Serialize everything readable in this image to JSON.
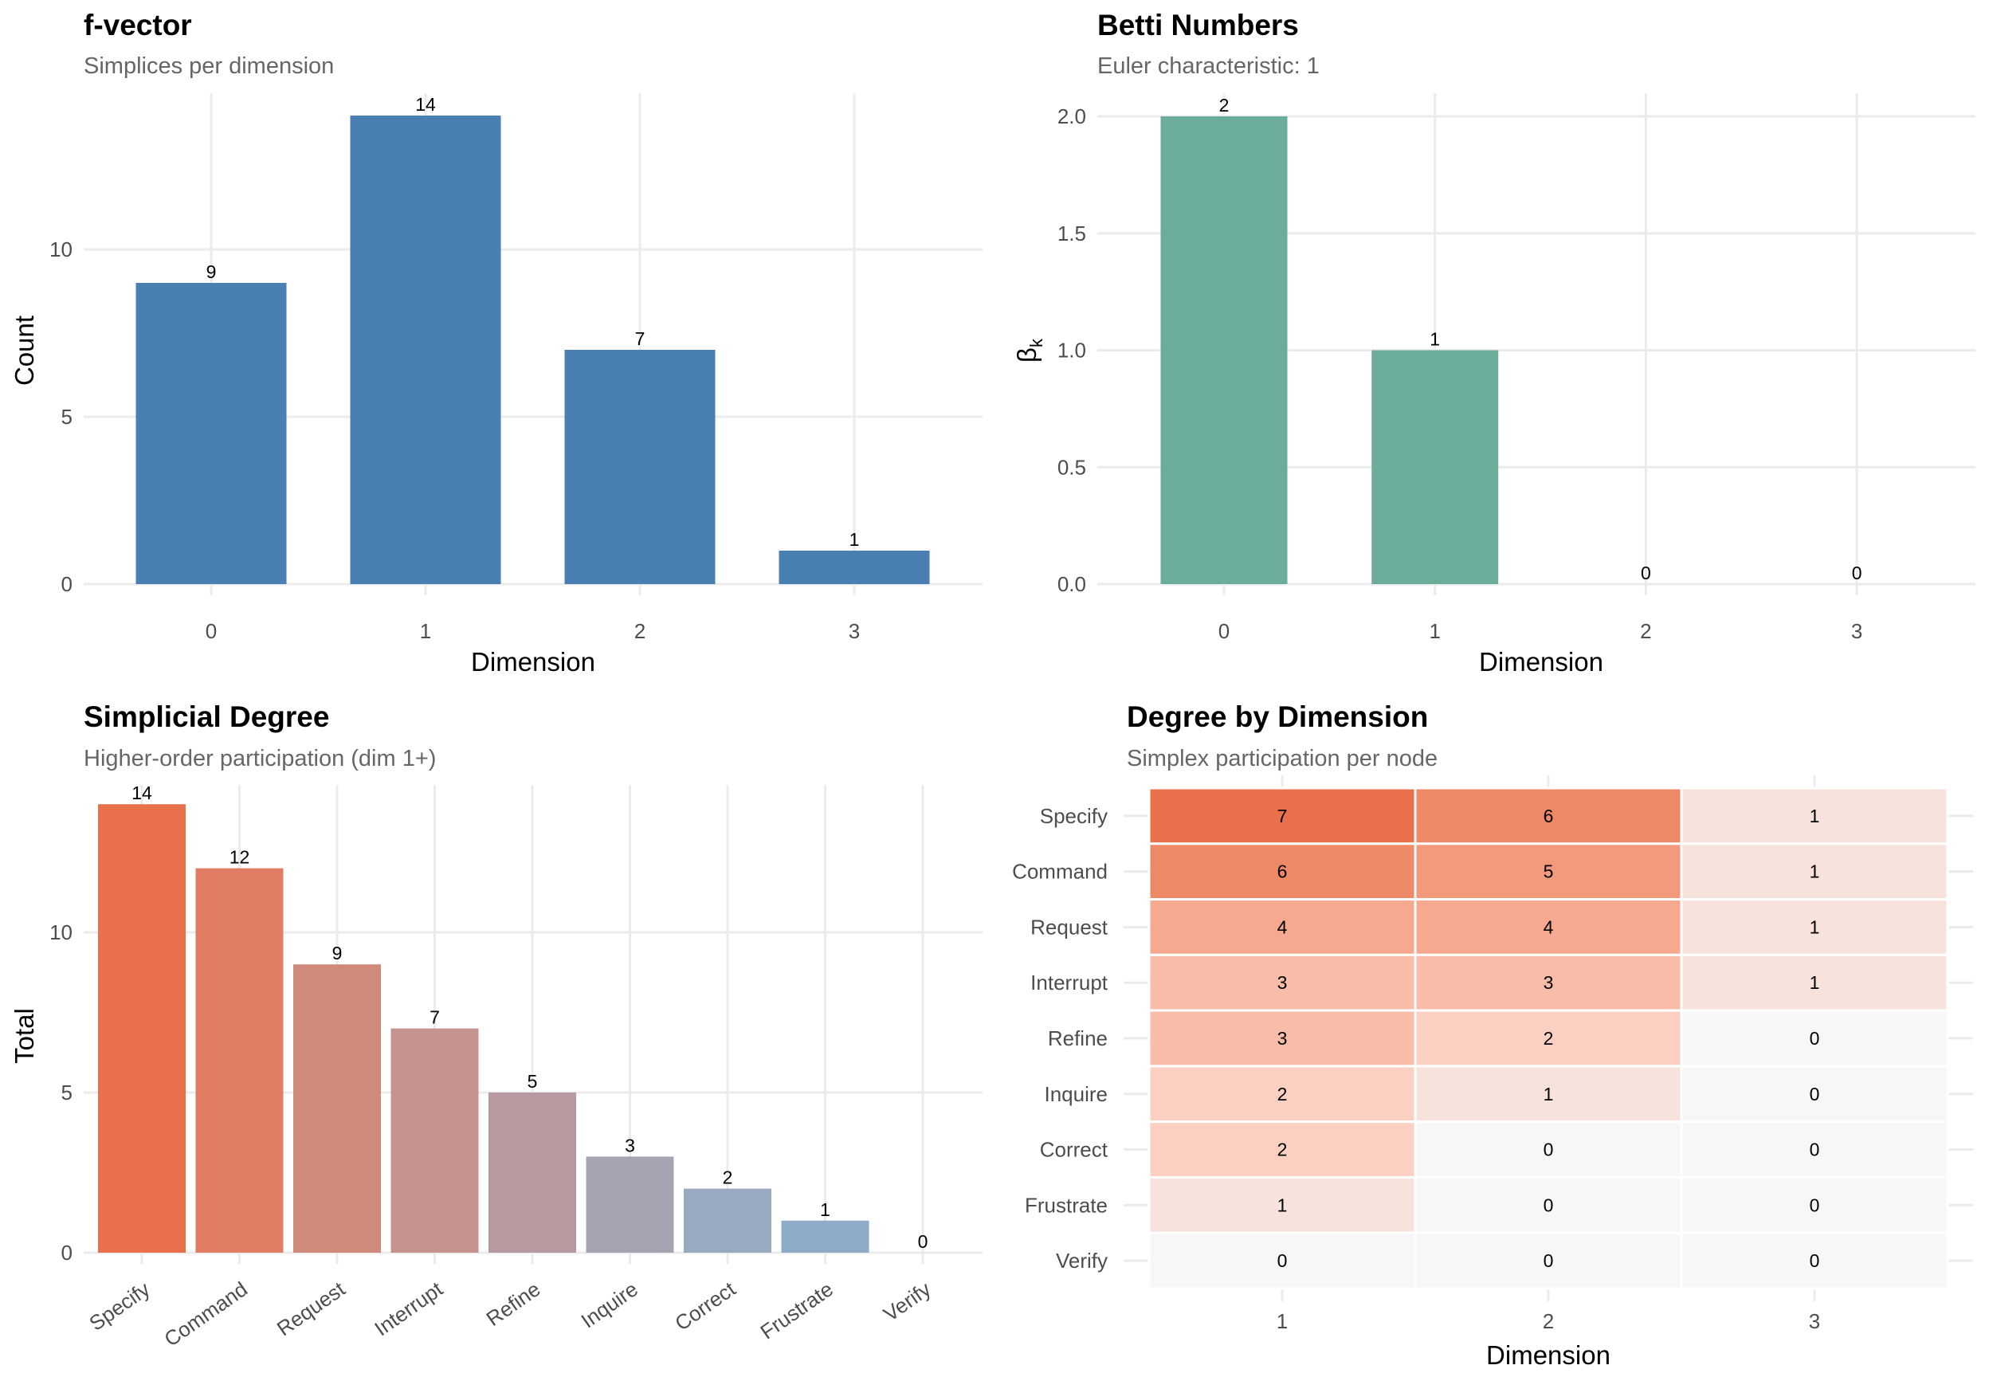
{
  "chart_data": [
    {
      "id": "fvector",
      "type": "bar",
      "title": "f-vector",
      "subtitle": "Simplices per dimension",
      "xlabel": "Dimension",
      "ylabel": "Count",
      "categories": [
        "0",
        "1",
        "2",
        "3"
      ],
      "values": [
        9,
        14,
        7,
        1
      ],
      "ylim": [
        0,
        14
      ],
      "yticks": [
        0,
        5,
        10
      ],
      "ytick_labels": [
        "0",
        "5",
        "10"
      ],
      "bar_color": "#4A7FB4",
      "grid": true,
      "data_labels": [
        "9",
        "14",
        "7",
        "1"
      ]
    },
    {
      "id": "betti",
      "type": "bar",
      "title": "Betti Numbers",
      "subtitle": "Euler characteristic: 1",
      "xlabel": "Dimension",
      "ylabel": "β",
      "ylabel_subscript": "k",
      "categories": [
        "0",
        "1",
        "2",
        "3"
      ],
      "values": [
        2,
        1,
        0,
        0
      ],
      "ylim": [
        0,
        2
      ],
      "yticks": [
        0,
        0.5,
        1.0,
        1.5,
        2.0
      ],
      "ytick_labels": [
        "0.0",
        "0.5",
        "1.0",
        "1.5",
        "2.0"
      ],
      "bar_color": "#6BAC9B",
      "grid": true,
      "data_labels": [
        "2",
        "1",
        "0",
        "0"
      ]
    },
    {
      "id": "degree",
      "type": "bar",
      "title": "Simplicial Degree",
      "subtitle": "Higher-order participation (dim 1+)",
      "xlabel": "",
      "ylabel": "Total",
      "categories": [
        "Specify",
        "Command",
        "Request",
        "Interrupt",
        "Refine",
        "Inquire",
        "Correct",
        "Frustrate",
        "Verify"
      ],
      "values": [
        14,
        12,
        9,
        7,
        5,
        3,
        2,
        1,
        0
      ],
      "ylim": [
        0,
        14
      ],
      "yticks": [
        0,
        5,
        10
      ],
      "ytick_labels": [
        "0",
        "5",
        "10"
      ],
      "bar_colors": [
        "#E8714B",
        "#E07D62",
        "#D08A7B",
        "#C4938F",
        "#B79A9F",
        "#A5A4B3",
        "#99A9BF",
        "#8EACC9",
        "#8AADCC"
      ],
      "grid": true,
      "data_labels": [
        "14",
        "12",
        "9",
        "7",
        "5",
        "3",
        "2",
        "1",
        "0"
      ]
    },
    {
      "id": "heatmap",
      "type": "heatmap",
      "title": "Degree by Dimension",
      "subtitle": "Simplex participation per node",
      "xlabel": "Dimension",
      "ylabel": "",
      "x": [
        "1",
        "2",
        "3"
      ],
      "y": [
        "Specify",
        "Command",
        "Request",
        "Interrupt",
        "Refine",
        "Inquire",
        "Correct",
        "Frustrate",
        "Verify"
      ],
      "values": [
        [
          7,
          6,
          1
        ],
        [
          6,
          5,
          1
        ],
        [
          4,
          4,
          1
        ],
        [
          3,
          3,
          1
        ],
        [
          3,
          2,
          0
        ],
        [
          2,
          1,
          0
        ],
        [
          2,
          0,
          0
        ],
        [
          1,
          0,
          0
        ],
        [
          0,
          0,
          0
        ]
      ],
      "color_scale": {
        "0": "#F7F7F7",
        "1": "#F8E3DC",
        "2": "#FBD0C3",
        "3": "#F9BCA9",
        "4": "#F6A98F",
        "5": "#F29A7B",
        "6": "#ED8965",
        "7": "#E8714B"
      }
    }
  ]
}
